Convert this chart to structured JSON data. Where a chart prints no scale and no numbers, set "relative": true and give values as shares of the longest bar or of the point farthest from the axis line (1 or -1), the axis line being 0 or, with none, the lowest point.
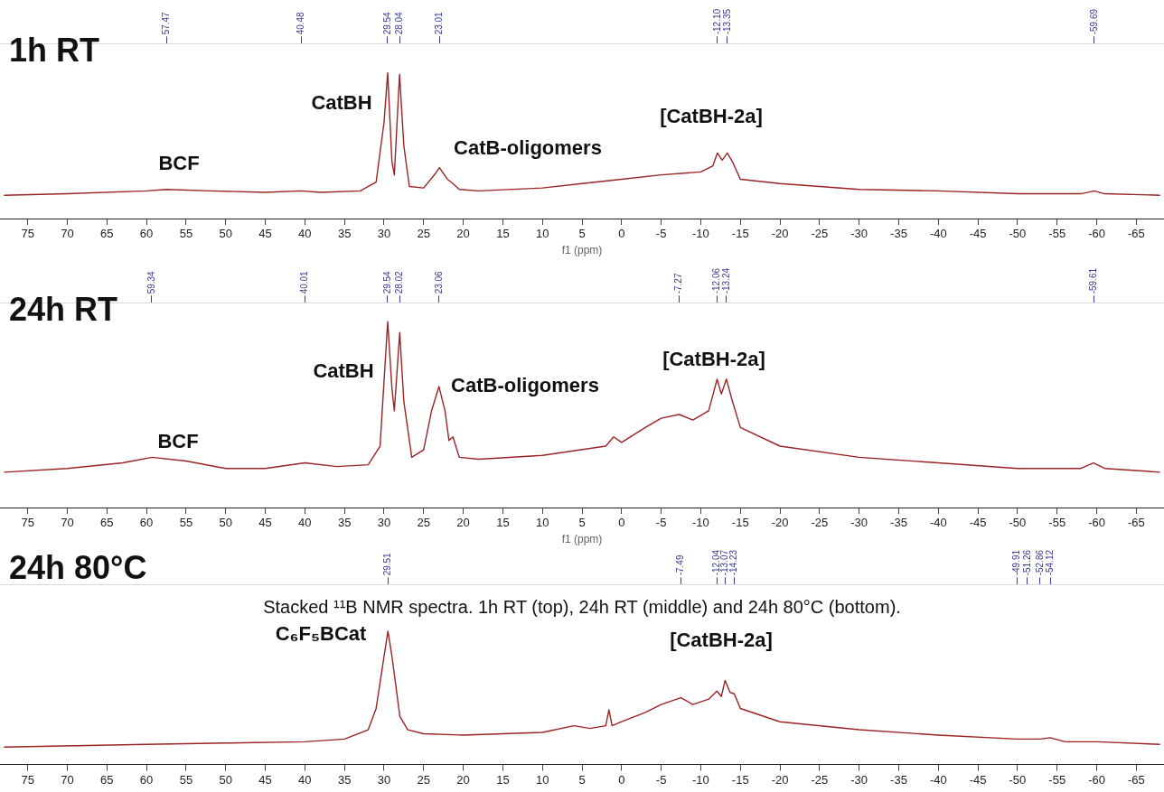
{
  "chart_data": [
    {
      "type": "line",
      "title": "1h RT",
      "xlabel": "f1 (ppm)",
      "relative": true,
      "legend": false,
      "grid": false,
      "marker": "none",
      "xlim": [
        78.5,
        -68.5
      ],
      "xticks": [
        75,
        70,
        65,
        60,
        55,
        50,
        45,
        40,
        35,
        30,
        25,
        20,
        15,
        10,
        5,
        0,
        -5,
        -10,
        -15,
        -20,
        -25,
        -30,
        -35,
        -40,
        -45,
        -50,
        -55,
        -60,
        -65
      ],
      "x2lim": [
        78.5,
        -68.5
      ],
      "x2ticks": [
        57.47,
        40.48,
        29.54,
        28.04,
        23.01,
        {
          "value": -12.1,
          "label": "-12.10"
        },
        -13.35,
        -59.69
      ],
      "annotations": [
        "BCF",
        "CatBH",
        "CatB-oligomers",
        "[CatBH-2a]"
      ],
      "series": [
        {
          "color": "#9b2323",
          "x": [
            78,
            70,
            60,
            57.5,
            52,
            45,
            40.5,
            38,
            33,
            31,
            30,
            29.54,
            29,
            28.7,
            28.04,
            27.5,
            26.8,
            25,
            23.5,
            23,
            22,
            21.3,
            20.5,
            18,
            10,
            5,
            0,
            -5,
            -10,
            -11.5,
            -12.1,
            -12.7,
            -13.35,
            -14,
            -15,
            -20,
            -30,
            -40,
            -50,
            -58,
            -59.7,
            -61,
            -68
          ],
          "values": [
            0.16,
            0.17,
            0.19,
            0.2,
            0.19,
            0.18,
            0.19,
            0.18,
            0.19,
            0.25,
            0.66,
            1,
            0.39,
            0.3,
            0.99,
            0.5,
            0.22,
            0.21,
            0.31,
            0.35,
            0.27,
            0.24,
            0.2,
            0.19,
            0.21,
            0.24,
            0.27,
            0.3,
            0.32,
            0.36,
            0.45,
            0.4,
            0.45,
            0.39,
            0.27,
            0.24,
            0.2,
            0.19,
            0.17,
            0.17,
            0.19,
            0.17,
            0.16
          ]
        }
      ]
    },
    {
      "type": "line",
      "title": "24h RT",
      "xlabel": "f1 (ppm)",
      "relative": true,
      "legend": false,
      "grid": false,
      "marker": "none",
      "xlim": [
        78.5,
        -68.5
      ],
      "xticks": [
        75,
        70,
        65,
        60,
        55,
        50,
        45,
        40,
        35,
        30,
        25,
        20,
        15,
        10,
        5,
        0,
        -5,
        -10,
        -15,
        -20,
        -25,
        -30,
        -35,
        -40,
        -45,
        -50,
        -55,
        -60,
        -65
      ],
      "x2lim": [
        78.5,
        -68.5
      ],
      "x2ticks": [
        59.34,
        40.01,
        29.54,
        28.02,
        23.06,
        -7.27,
        -12.06,
        -13.24,
        -59.61
      ],
      "annotations": [
        "BCF",
        "CatBH",
        "CatB-oligomers",
        "[CatBH-2a]"
      ],
      "series": [
        {
          "color": "#9b2323",
          "x": [
            78,
            70,
            63,
            59.3,
            55,
            50,
            45,
            40,
            36,
            32,
            30.5,
            29.54,
            29,
            28.7,
            28.02,
            27.5,
            26.5,
            25,
            24,
            23.06,
            22.3,
            21.8,
            21.3,
            20.5,
            18,
            10,
            2,
            1,
            0,
            -3,
            -5,
            -7.27,
            -9,
            -11,
            -12.06,
            -12.6,
            -13.24,
            -14,
            -15,
            -20,
            -30,
            -40,
            -50,
            -58,
            -59.6,
            -61,
            -68
          ],
          "values": [
            0.19,
            0.21,
            0.24,
            0.27,
            0.25,
            0.21,
            0.21,
            0.24,
            0.22,
            0.23,
            0.33,
            1,
            0.64,
            0.52,
            0.94,
            0.57,
            0.27,
            0.31,
            0.52,
            0.65,
            0.52,
            0.36,
            0.38,
            0.27,
            0.26,
            0.28,
            0.33,
            0.38,
            0.35,
            0.43,
            0.48,
            0.5,
            0.47,
            0.52,
            0.69,
            0.61,
            0.69,
            0.57,
            0.43,
            0.33,
            0.27,
            0.24,
            0.21,
            0.21,
            0.24,
            0.21,
            0.19
          ]
        }
      ]
    },
    {
      "type": "line",
      "title": "24h 80°C",
      "relative": true,
      "legend": false,
      "grid": false,
      "marker": "none",
      "xlim": [
        78.5,
        -68.5
      ],
      "xticks": [
        75,
        70,
        65,
        60,
        55,
        50,
        45,
        40,
        35,
        30,
        25,
        20,
        15,
        10,
        5,
        0,
        -5,
        -10,
        -15,
        -20,
        -25,
        -30,
        -35,
        -40,
        -45,
        -50,
        -55,
        -60,
        -65
      ],
      "x2lim": [
        78.5,
        -68.5
      ],
      "x2ticks": [
        29.51,
        -7.49,
        -12.04,
        -13.07,
        -14.23,
        -49.91,
        -51.26,
        -52.86,
        -54.12
      ],
      "annotations": [
        "Stacked ¹¹B NMR spectra. 1h RT (top), 24h RT (middle) and 24h 80°C (bottom).",
        "C₆F₅BCat",
        "[CatBH-2a]"
      ],
      "series": [
        {
          "color": "#9b2323",
          "x": [
            78,
            60,
            50,
            40,
            35,
            32,
            31,
            30,
            29.51,
            29,
            28,
            27,
            25,
            20,
            10,
            6,
            4,
            2,
            1.6,
            1.2,
            0,
            -3,
            -5,
            -7.49,
            -9,
            -11,
            -12.04,
            -12.6,
            -13.07,
            -13.7,
            -14.23,
            -15,
            -20,
            -30,
            -40,
            -49.91,
            -51.26,
            -52.86,
            -54.12,
            -56,
            -60,
            -68
          ],
          "values": [
            0.13,
            0.15,
            0.16,
            0.17,
            0.19,
            0.26,
            0.42,
            0.81,
            1,
            0.81,
            0.36,
            0.26,
            0.23,
            0.22,
            0.24,
            0.29,
            0.27,
            0.29,
            0.41,
            0.29,
            0.32,
            0.39,
            0.45,
            0.5,
            0.45,
            0.49,
            0.55,
            0.51,
            0.63,
            0.54,
            0.53,
            0.42,
            0.32,
            0.26,
            0.22,
            0.19,
            0.19,
            0.19,
            0.2,
            0.17,
            0.17,
            0.15
          ]
        }
      ]
    }
  ]
}
